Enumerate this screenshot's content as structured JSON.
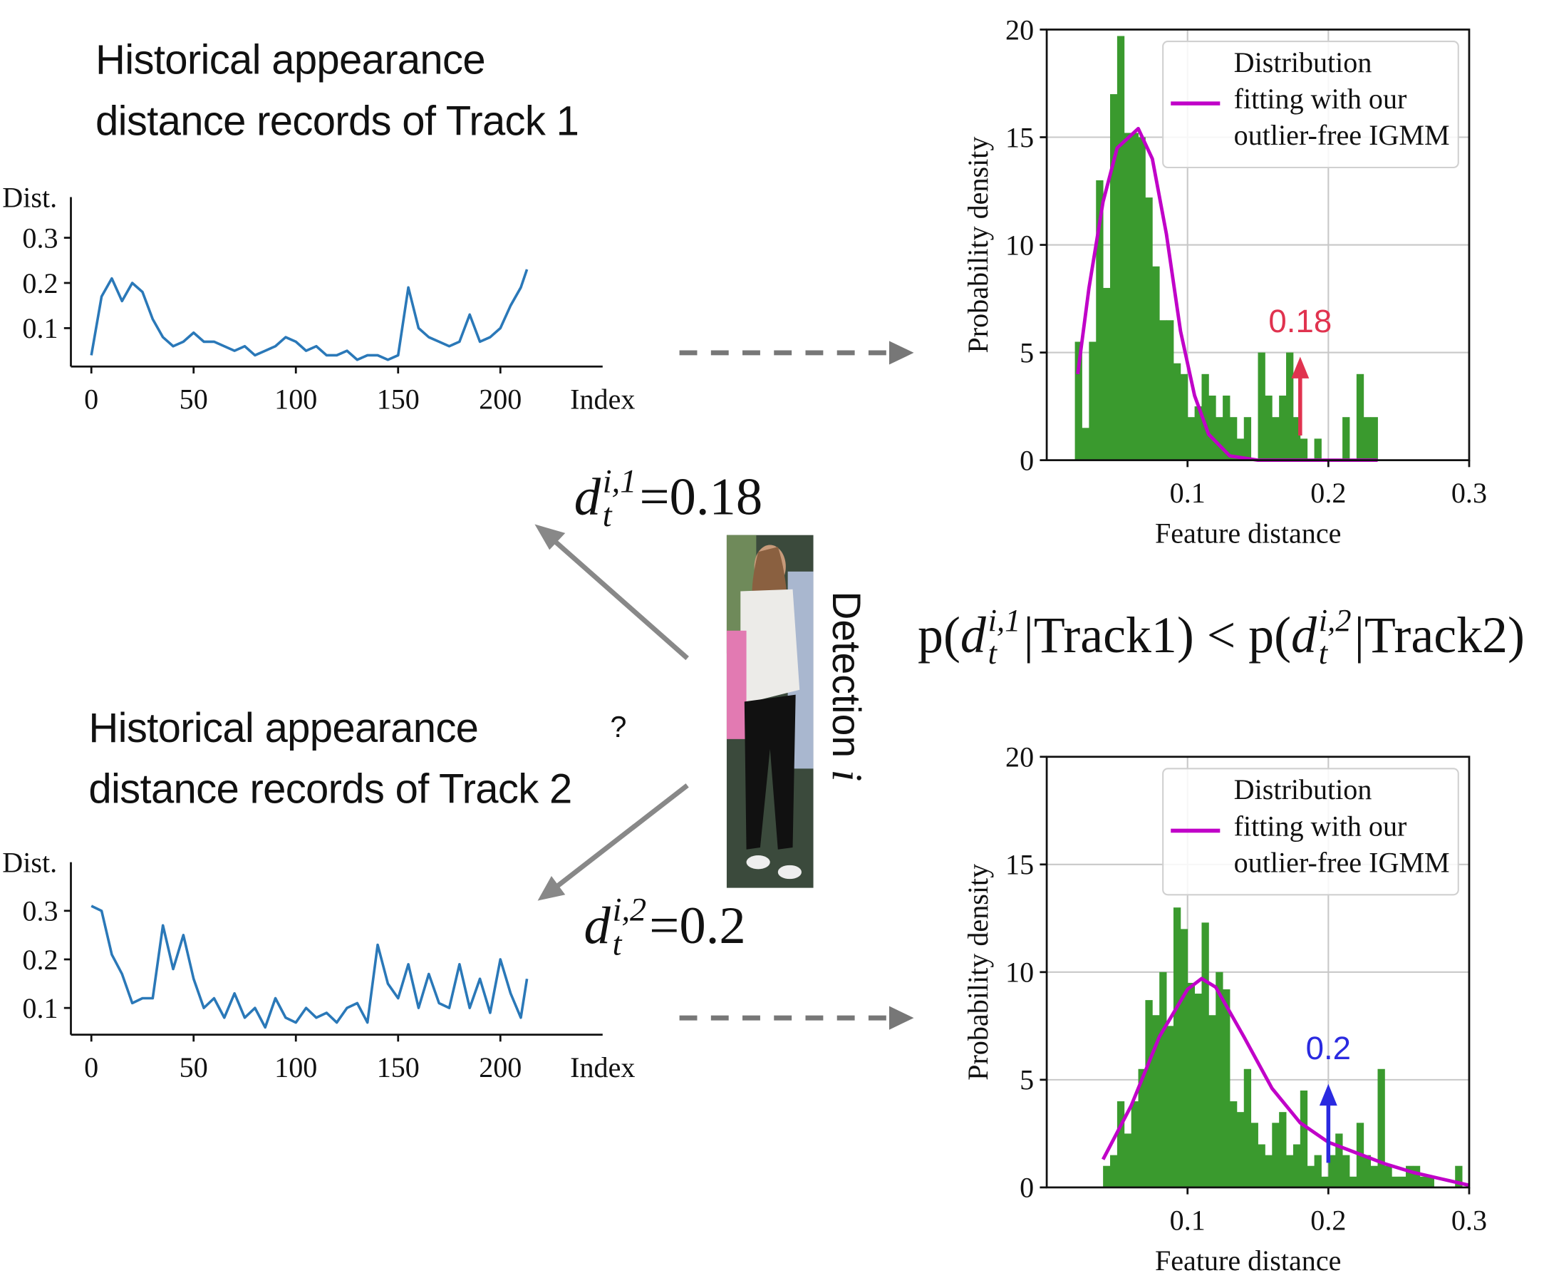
{
  "chart_data": [
    {
      "type": "line",
      "title": "Historical appearance\ndistance records of Track 1",
      "ylabel": "Dist.",
      "xlabel": "Index",
      "color": "#2a78b8",
      "x": [
        0,
        5,
        10,
        15,
        20,
        25,
        30,
        35,
        40,
        45,
        50,
        55,
        60,
        65,
        70,
        75,
        80,
        85,
        90,
        95,
        100,
        105,
        110,
        115,
        120,
        125,
        130,
        135,
        140,
        145,
        150,
        155,
        160,
        165,
        170,
        175,
        180,
        185,
        190,
        195,
        200,
        205,
        210,
        213
      ],
      "values": [
        0.04,
        0.17,
        0.21,
        0.16,
        0.2,
        0.18,
        0.12,
        0.08,
        0.06,
        0.07,
        0.09,
        0.07,
        0.07,
        0.06,
        0.05,
        0.06,
        0.04,
        0.05,
        0.06,
        0.08,
        0.07,
        0.05,
        0.06,
        0.04,
        0.04,
        0.05,
        0.03,
        0.04,
        0.04,
        0.03,
        0.04,
        0.19,
        0.1,
        0.08,
        0.07,
        0.06,
        0.07,
        0.13,
        0.07,
        0.08,
        0.1,
        0.15,
        0.19,
        0.23
      ],
      "xlim": [
        -10,
        250
      ],
      "ylim": [
        0.015,
        0.39
      ],
      "xticks": [
        0,
        50,
        100,
        150,
        200
      ],
      "yticks": [
        0.1,
        0.2,
        0.3
      ]
    },
    {
      "type": "histogram",
      "ylabel": "Probability density",
      "xlabel": "Feature distance",
      "color": "#3a9a2e",
      "grid": true,
      "bins": [
        0.02,
        0.025,
        0.03,
        0.035,
        0.04,
        0.045,
        0.05,
        0.055,
        0.06,
        0.065,
        0.07,
        0.075,
        0.08,
        0.085,
        0.09,
        0.095,
        0.1,
        0.105,
        0.11,
        0.115,
        0.12,
        0.125,
        0.13,
        0.135,
        0.14,
        0.145,
        0.15,
        0.155,
        0.16,
        0.165,
        0.17,
        0.175,
        0.18,
        0.185,
        0.19,
        0.195,
        0.2,
        0.205,
        0.21,
        0.215,
        0.22,
        0.225,
        0.23,
        0.235
      ],
      "values": [
        5.5,
        1.5,
        5.5,
        13,
        8,
        17,
        19.7,
        15.2,
        15.2,
        15,
        12.2,
        9,
        6.5,
        6.5,
        4.5,
        4,
        2,
        2.5,
        4,
        3,
        2,
        3,
        2,
        1,
        2,
        0,
        5,
        3,
        2,
        3,
        5,
        2,
        1,
        0,
        1,
        0,
        0,
        0,
        2,
        0,
        4,
        2,
        2
      ],
      "fit": {
        "name": "Distribution\nfitting with our\noutlier-free IGMM",
        "color": "#c000c8",
        "x": [
          0.022,
          0.03,
          0.04,
          0.05,
          0.065,
          0.075,
          0.085,
          0.095,
          0.105,
          0.115,
          0.13,
          0.15,
          0.235
        ],
        "values": [
          4,
          8,
          12,
          14.5,
          15.4,
          14,
          10.5,
          6,
          3,
          1.2,
          0.2,
          0,
          0
        ]
      },
      "marker": {
        "value": 0.18,
        "label": "0.18",
        "color": "#e0334f"
      },
      "xlim": [
        0,
        0.3
      ],
      "ylim": [
        0,
        20
      ],
      "xticks": [
        0.1,
        0.2,
        0.3
      ],
      "yticks": [
        0,
        5,
        10,
        15,
        20
      ]
    },
    {
      "type": "line",
      "title": "Historical appearance\ndistance records of Track 2",
      "ylabel": "Dist.",
      "xlabel": "Index",
      "color": "#2a78b8",
      "x": [
        0,
        5,
        10,
        15,
        20,
        25,
        30,
        35,
        40,
        45,
        50,
        55,
        60,
        65,
        70,
        75,
        80,
        85,
        90,
        95,
        100,
        105,
        110,
        115,
        120,
        125,
        130,
        135,
        140,
        145,
        150,
        155,
        160,
        165,
        170,
        175,
        180,
        185,
        190,
        195,
        200,
        205,
        210,
        213
      ],
      "values": [
        0.31,
        0.3,
        0.21,
        0.17,
        0.11,
        0.12,
        0.12,
        0.27,
        0.18,
        0.25,
        0.16,
        0.1,
        0.12,
        0.08,
        0.13,
        0.08,
        0.1,
        0.06,
        0.12,
        0.08,
        0.07,
        0.1,
        0.08,
        0.09,
        0.07,
        0.1,
        0.11,
        0.07,
        0.23,
        0.15,
        0.12,
        0.19,
        0.1,
        0.17,
        0.11,
        0.1,
        0.19,
        0.1,
        0.16,
        0.09,
        0.2,
        0.13,
        0.08,
        0.16
      ],
      "xlim": [
        -10,
        250
      ],
      "ylim": [
        0.045,
        0.4
      ],
      "xticks": [
        0,
        50,
        100,
        150,
        200
      ],
      "yticks": [
        0.1,
        0.2,
        0.3
      ]
    },
    {
      "type": "histogram",
      "ylabel": "Probability density",
      "xlabel": "Feature distance",
      "color": "#3a9a2e",
      "grid": true,
      "bins": [
        0.04,
        0.045,
        0.05,
        0.055,
        0.06,
        0.065,
        0.07,
        0.075,
        0.08,
        0.085,
        0.09,
        0.095,
        0.1,
        0.105,
        0.11,
        0.115,
        0.12,
        0.125,
        0.13,
        0.135,
        0.14,
        0.145,
        0.15,
        0.155,
        0.16,
        0.165,
        0.17,
        0.175,
        0.18,
        0.185,
        0.19,
        0.195,
        0.2,
        0.205,
        0.21,
        0.215,
        0.22,
        0.225,
        0.23,
        0.235,
        0.24,
        0.245,
        0.25,
        0.255,
        0.26,
        0.265,
        0.27,
        0.275,
        0.28,
        0.285,
        0.29,
        0.295
      ],
      "values": [
        1,
        1.5,
        4,
        2.5,
        4,
        5.5,
        8.7,
        8,
        10,
        7.5,
        13,
        12,
        9.5,
        9,
        12.3,
        8,
        10,
        9.2,
        4,
        3.5,
        5.5,
        3,
        2,
        1.5,
        3,
        3.5,
        1.5,
        2,
        4.5,
        1,
        1.5,
        0.5,
        1.5,
        2.5,
        1.5,
        0.5,
        3,
        1.5,
        1,
        5.5,
        1,
        0.5,
        0.5,
        1,
        1,
        0.5,
        0.5,
        0,
        0,
        0,
        1
      ],
      "fit": {
        "name": "Distribution\nfitting with our\noutlier-free IGMM",
        "color": "#c000c8",
        "x": [
          0.04,
          0.06,
          0.08,
          0.1,
          0.11,
          0.12,
          0.14,
          0.16,
          0.18,
          0.2,
          0.22,
          0.24,
          0.26,
          0.28,
          0.3
        ],
        "values": [
          1.3,
          3.8,
          7,
          9.2,
          9.7,
          9.3,
          7,
          4.6,
          3,
          2.1,
          1.6,
          1.1,
          0.7,
          0.4,
          0.1
        ]
      },
      "marker": {
        "value": 0.2,
        "label": "0.2",
        "color": "#2a2ae0"
      },
      "xlim": [
        0,
        0.3
      ],
      "ylim": [
        0,
        20
      ],
      "xticks": [
        0.1,
        0.2,
        0.3
      ],
      "yticks": [
        0,
        5,
        10,
        15,
        20
      ]
    }
  ],
  "equations": [
    {
      "base": "d",
      "sup": "i,1",
      "sub": "t",
      "relation": "=",
      "rhs": 0.18
    },
    {
      "base": "d",
      "sup": "i,2",
      "sub": "t",
      "relation": "=",
      "rhs": 0.2
    }
  ],
  "formula": [
    {
      "text": "p("
    },
    {
      "base": "d",
      "sup": "i,1",
      "sub": "t"
    },
    {
      "text": "|Track1) < p("
    },
    {
      "base": "d",
      "sup": "i,2",
      "sub": "t"
    },
    {
      "text": "|Track2)"
    }
  ],
  "question": "?",
  "detection": {
    "text": "Detection",
    "var": "i"
  }
}
